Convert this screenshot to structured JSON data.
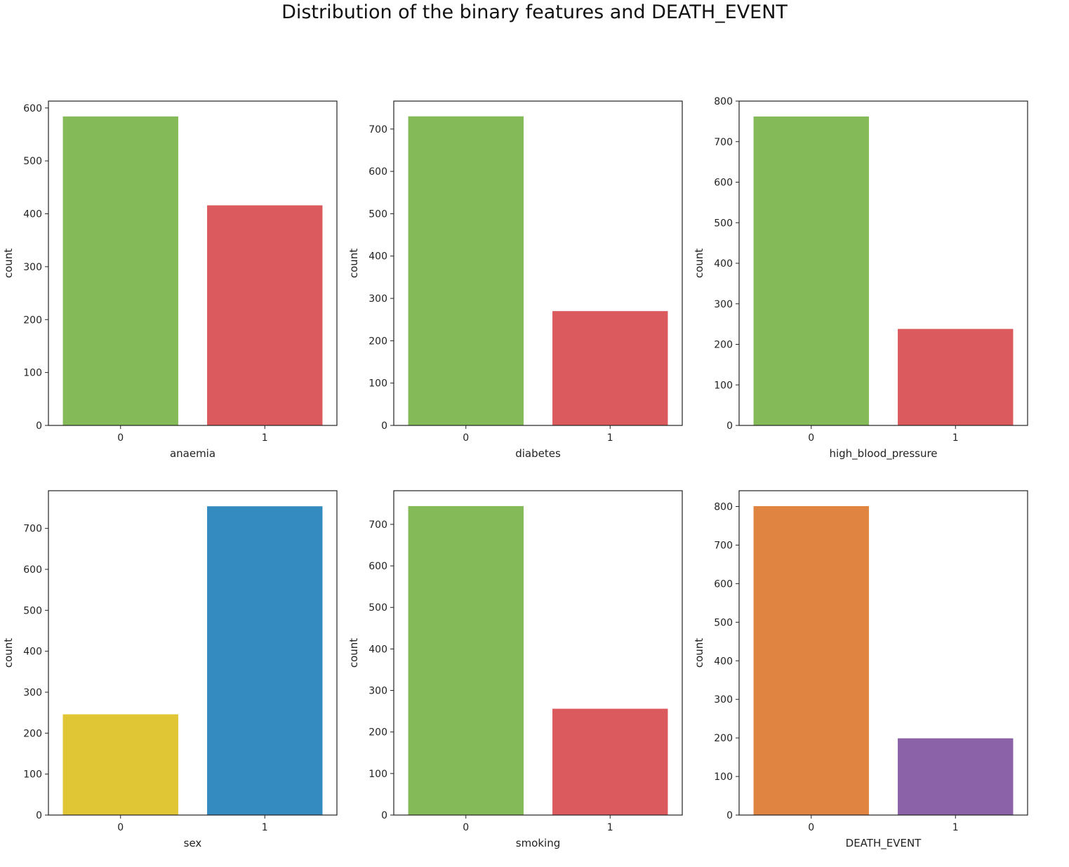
{
  "figure": {
    "title": "Distribution of the binary features and DEATH_EVENT"
  },
  "chart_data": [
    {
      "type": "bar",
      "xlabel": "anaemia",
      "ylabel": "count",
      "categories": [
        "0",
        "1"
      ],
      "values": [
        584,
        416
      ],
      "colors": [
        "#84bb58",
        "#db5a5d"
      ],
      "ylim": [
        0,
        613
      ],
      "yticks": [
        0,
        100,
        200,
        300,
        400,
        500,
        600
      ]
    },
    {
      "type": "bar",
      "xlabel": "diabetes",
      "ylabel": "count",
      "categories": [
        "0",
        "1"
      ],
      "values": [
        730,
        270
      ],
      "colors": [
        "#84bb58",
        "#db5a5d"
      ],
      "ylim": [
        0,
        766
      ],
      "yticks": [
        0,
        100,
        200,
        300,
        400,
        500,
        600,
        700
      ]
    },
    {
      "type": "bar",
      "xlabel": "high_blood_pressure",
      "ylabel": "count",
      "categories": [
        "0",
        "1"
      ],
      "values": [
        762,
        238
      ],
      "colors": [
        "#84bb58",
        "#db5a5d"
      ],
      "ylim": [
        0,
        800
      ],
      "yticks": [
        0,
        100,
        200,
        300,
        400,
        500,
        600,
        700,
        800
      ]
    },
    {
      "type": "bar",
      "xlabel": "sex",
      "ylabel": "count",
      "categories": [
        "0",
        "1"
      ],
      "values": [
        246,
        754
      ],
      "colors": [
        "#e0c535",
        "#348bc0"
      ],
      "ylim": [
        0,
        792
      ],
      "yticks": [
        0,
        100,
        200,
        300,
        400,
        500,
        600,
        700
      ]
    },
    {
      "type": "bar",
      "xlabel": "smoking",
      "ylabel": "count",
      "categories": [
        "0",
        "1"
      ],
      "values": [
        744,
        256
      ],
      "colors": [
        "#84bb58",
        "#db5a5d"
      ],
      "ylim": [
        0,
        781
      ],
      "yticks": [
        0,
        100,
        200,
        300,
        400,
        500,
        600,
        700
      ]
    },
    {
      "type": "bar",
      "xlabel": "DEATH_EVENT",
      "ylabel": "count",
      "categories": [
        "0",
        "1"
      ],
      "values": [
        801,
        199
      ],
      "colors": [
        "#e08441",
        "#8b62a7"
      ],
      "ylim": [
        0,
        841
      ],
      "yticks": [
        0,
        100,
        200,
        300,
        400,
        500,
        600,
        700,
        800
      ]
    }
  ]
}
